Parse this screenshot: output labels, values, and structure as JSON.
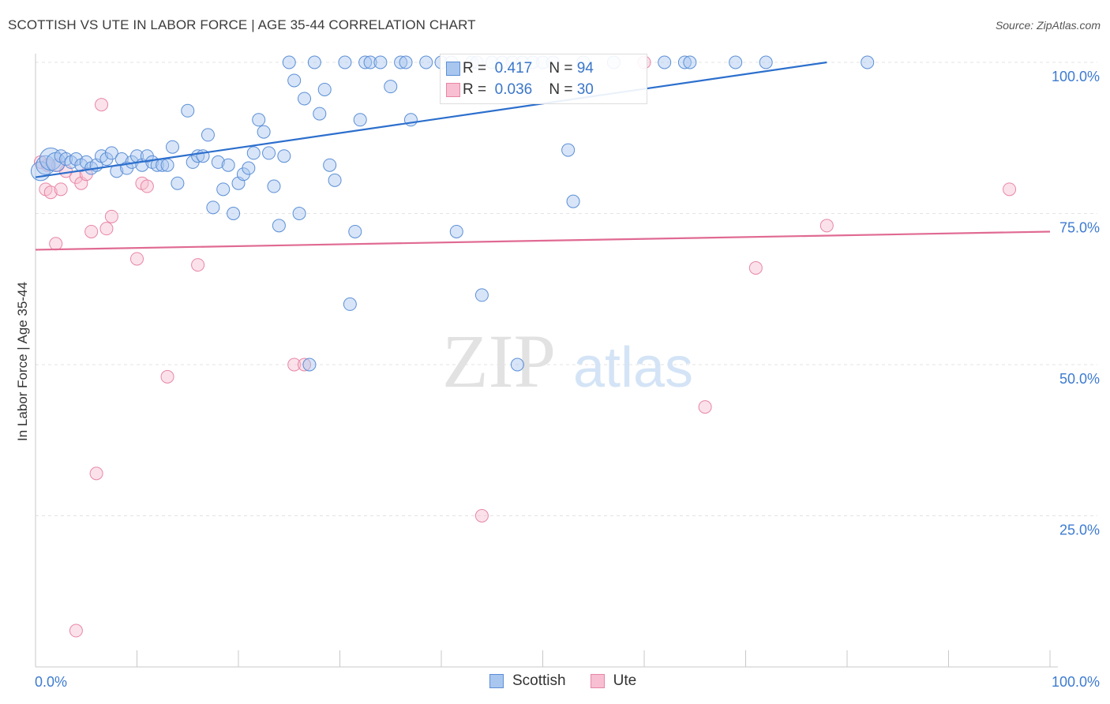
{
  "title": "SCOTTISH VS UTE IN LABOR FORCE | AGE 35-44 CORRELATION CHART",
  "source": "Source: ZipAtlas.com",
  "watermark": {
    "zip": "ZIP",
    "atlas": "atlas"
  },
  "colors": {
    "scottish": "#5b8fd6",
    "scottish_fill": "#a9c6ef",
    "scottish_line": "#2c6fcd",
    "ute": "#e886a6",
    "ute_fill": "#f7bfd1",
    "ute_line": "#e06a93",
    "axis_label": "#3d7bd0"
  },
  "stats": [
    {
      "r_label": "R =",
      "r_value": "0.417",
      "n_label": "N =",
      "n_value": "94"
    },
    {
      "r_label": "R =",
      "r_value": "0.036",
      "n_label": "N =",
      "n_value": "30"
    }
  ],
  "legend": [
    "Scottish",
    "Ute"
  ],
  "chart_data": {
    "type": "scatter",
    "title": "SCOTTISH VS UTE IN LABOR FORCE | AGE 35-44 CORRELATION CHART",
    "xlabel": "",
    "ylabel": "In Labor Force | Age 35-44",
    "xlim": [
      0,
      100
    ],
    "ylim": [
      0,
      100
    ],
    "x_tick_labels": [
      "0.0%",
      "100.0%"
    ],
    "y_tick_labels": [
      {
        "value": 100,
        "label": "100.0%"
      },
      {
        "value": 75,
        "label": "75.0%"
      },
      {
        "value": 50,
        "label": "50.0%"
      },
      {
        "value": 25,
        "label": "25.0%"
      }
    ],
    "series": [
      {
        "name": "Scottish",
        "points": [
          [
            0.5,
            82
          ],
          [
            1,
            83
          ],
          [
            1.5,
            84
          ],
          [
            2,
            83.5
          ],
          [
            2.5,
            84.5
          ],
          [
            3,
            84
          ],
          [
            3.5,
            83.5
          ],
          [
            4,
            84
          ],
          [
            4.5,
            83
          ],
          [
            5,
            83.5
          ],
          [
            5.5,
            82.5
          ],
          [
            6,
            83
          ],
          [
            6.5,
            84.5
          ],
          [
            7,
            84
          ],
          [
            7.5,
            85
          ],
          [
            8,
            82
          ],
          [
            8.5,
            84
          ],
          [
            9,
            82.5
          ],
          [
            9.5,
            83.5
          ],
          [
            10,
            84.5
          ],
          [
            10.5,
            83
          ],
          [
            11,
            84.5
          ],
          [
            11.5,
            83.5
          ],
          [
            12,
            83
          ],
          [
            12.5,
            83
          ],
          [
            13,
            83
          ],
          [
            13.5,
            86
          ],
          [
            14,
            80
          ],
          [
            15,
            92
          ],
          [
            15.5,
            83.5
          ],
          [
            16,
            84.5
          ],
          [
            16.5,
            84.5
          ],
          [
            17,
            88
          ],
          [
            17.5,
            76
          ],
          [
            18,
            83.5
          ],
          [
            18.5,
            79
          ],
          [
            19,
            83
          ],
          [
            19.5,
            75
          ],
          [
            20,
            80
          ],
          [
            20.5,
            81.5
          ],
          [
            21,
            82.5
          ],
          [
            21.5,
            85
          ],
          [
            22,
            90.5
          ],
          [
            22.5,
            88.5
          ],
          [
            23,
            85
          ],
          [
            23.5,
            79.5
          ],
          [
            24,
            73
          ],
          [
            24.5,
            84.5
          ],
          [
            25,
            100
          ],
          [
            25.5,
            97
          ],
          [
            26,
            75
          ],
          [
            26.5,
            94
          ],
          [
            27,
            50
          ],
          [
            27.5,
            100
          ],
          [
            28,
            91.5
          ],
          [
            28.5,
            95.5
          ],
          [
            29,
            83
          ],
          [
            29.5,
            80.5
          ],
          [
            30.5,
            100
          ],
          [
            31,
            60
          ],
          [
            31.5,
            72
          ],
          [
            32,
            90.5
          ],
          [
            32.5,
            100
          ],
          [
            33,
            100
          ],
          [
            34,
            100
          ],
          [
            35,
            96
          ],
          [
            36,
            100
          ],
          [
            36.5,
            100
          ],
          [
            37,
            90.5
          ],
          [
            38.5,
            100
          ],
          [
            40,
            100
          ],
          [
            41,
            100
          ],
          [
            41.5,
            72
          ],
          [
            43,
            100
          ],
          [
            43.5,
            100
          ],
          [
            44,
            61.5
          ],
          [
            45,
            100
          ],
          [
            46,
            100
          ],
          [
            47,
            100
          ],
          [
            47.5,
            50
          ],
          [
            48,
            100
          ],
          [
            49,
            100
          ],
          [
            50,
            100
          ],
          [
            51,
            100
          ],
          [
            52.5,
            85.5
          ],
          [
            53,
            77
          ],
          [
            54,
            100
          ],
          [
            57,
            100
          ],
          [
            62,
            100
          ],
          [
            64,
            100
          ],
          [
            69,
            100
          ],
          [
            72,
            100
          ],
          [
            82,
            100
          ],
          [
            64.5,
            100
          ]
        ]
      },
      {
        "name": "Ute",
        "points": [
          [
            0.5,
            83.5
          ],
          [
            1,
            79
          ],
          [
            1.5,
            78.5
          ],
          [
            2,
            70
          ],
          [
            2.5,
            79
          ],
          [
            3,
            82
          ],
          [
            4,
            81
          ],
          [
            4.5,
            80
          ],
          [
            5,
            81.5
          ],
          [
            5.5,
            72
          ],
          [
            6.5,
            93
          ],
          [
            7,
            72.5
          ],
          [
            7.5,
            74.5
          ],
          [
            10,
            67.5
          ],
          [
            10.5,
            80
          ],
          [
            11,
            79.5
          ],
          [
            13,
            48
          ],
          [
            16,
            66.5
          ],
          [
            25.5,
            50
          ],
          [
            26.5,
            50
          ],
          [
            60,
            100
          ],
          [
            6,
            32
          ],
          [
            4,
            6
          ],
          [
            44,
            25
          ],
          [
            66,
            43
          ],
          [
            71,
            66
          ],
          [
            78,
            73
          ],
          [
            96,
            79
          ],
          [
            1.2,
            83
          ],
          [
            2.2,
            83
          ]
        ]
      }
    ],
    "trendlines": [
      {
        "name": "Scottish",
        "x": [
          0,
          78
        ],
        "y": [
          81,
          100
        ]
      },
      {
        "name": "Ute",
        "x": [
          0,
          100
        ],
        "y": [
          69,
          72
        ]
      }
    ]
  }
}
